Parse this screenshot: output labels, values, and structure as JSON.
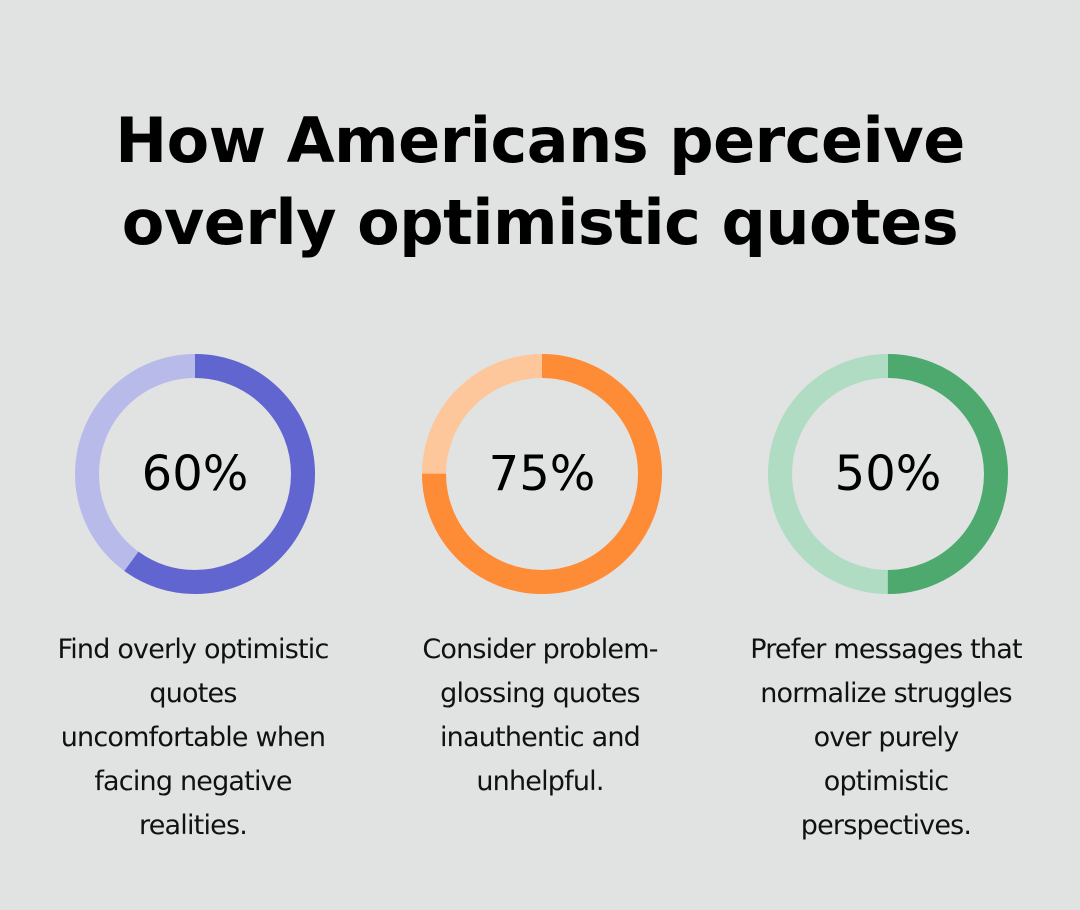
{
  "title": "How Americans perceive\noverly optimistic quotes",
  "items": [
    {
      "value": "60%",
      "percent": 60,
      "color": "#6065cf",
      "track": "#b8bbea",
      "text": "Find overly optimistic\nquotes\nuncomfortable when\nfacing negative\nrealities."
    },
    {
      "value": "75%",
      "percent": 75,
      "color": "#fe8b36",
      "track": "#fdc69b",
      "text": "Consider problem-\nglossing quotes\ninauthentic and\nunhelpful."
    },
    {
      "value": "50%",
      "percent": 50,
      "color": "#4ea96e",
      "track": "#afdcc2",
      "text": "Prefer messages that\nnormalize struggles\nover purely\noptimistic\nperspectives."
    }
  ],
  "chart_data": {
    "type": "pie",
    "title": "How Americans perceive overly optimistic quotes",
    "categories": [
      "Find overly optimistic quotes uncomfortable when facing negative realities.",
      "Consider problem-glossing quotes inauthentic and unhelpful.",
      "Prefer messages that normalize struggles over purely optimistic perspectives."
    ],
    "values": [
      60,
      75,
      50
    ],
    "unit": "%",
    "style": "donut-progress"
  }
}
